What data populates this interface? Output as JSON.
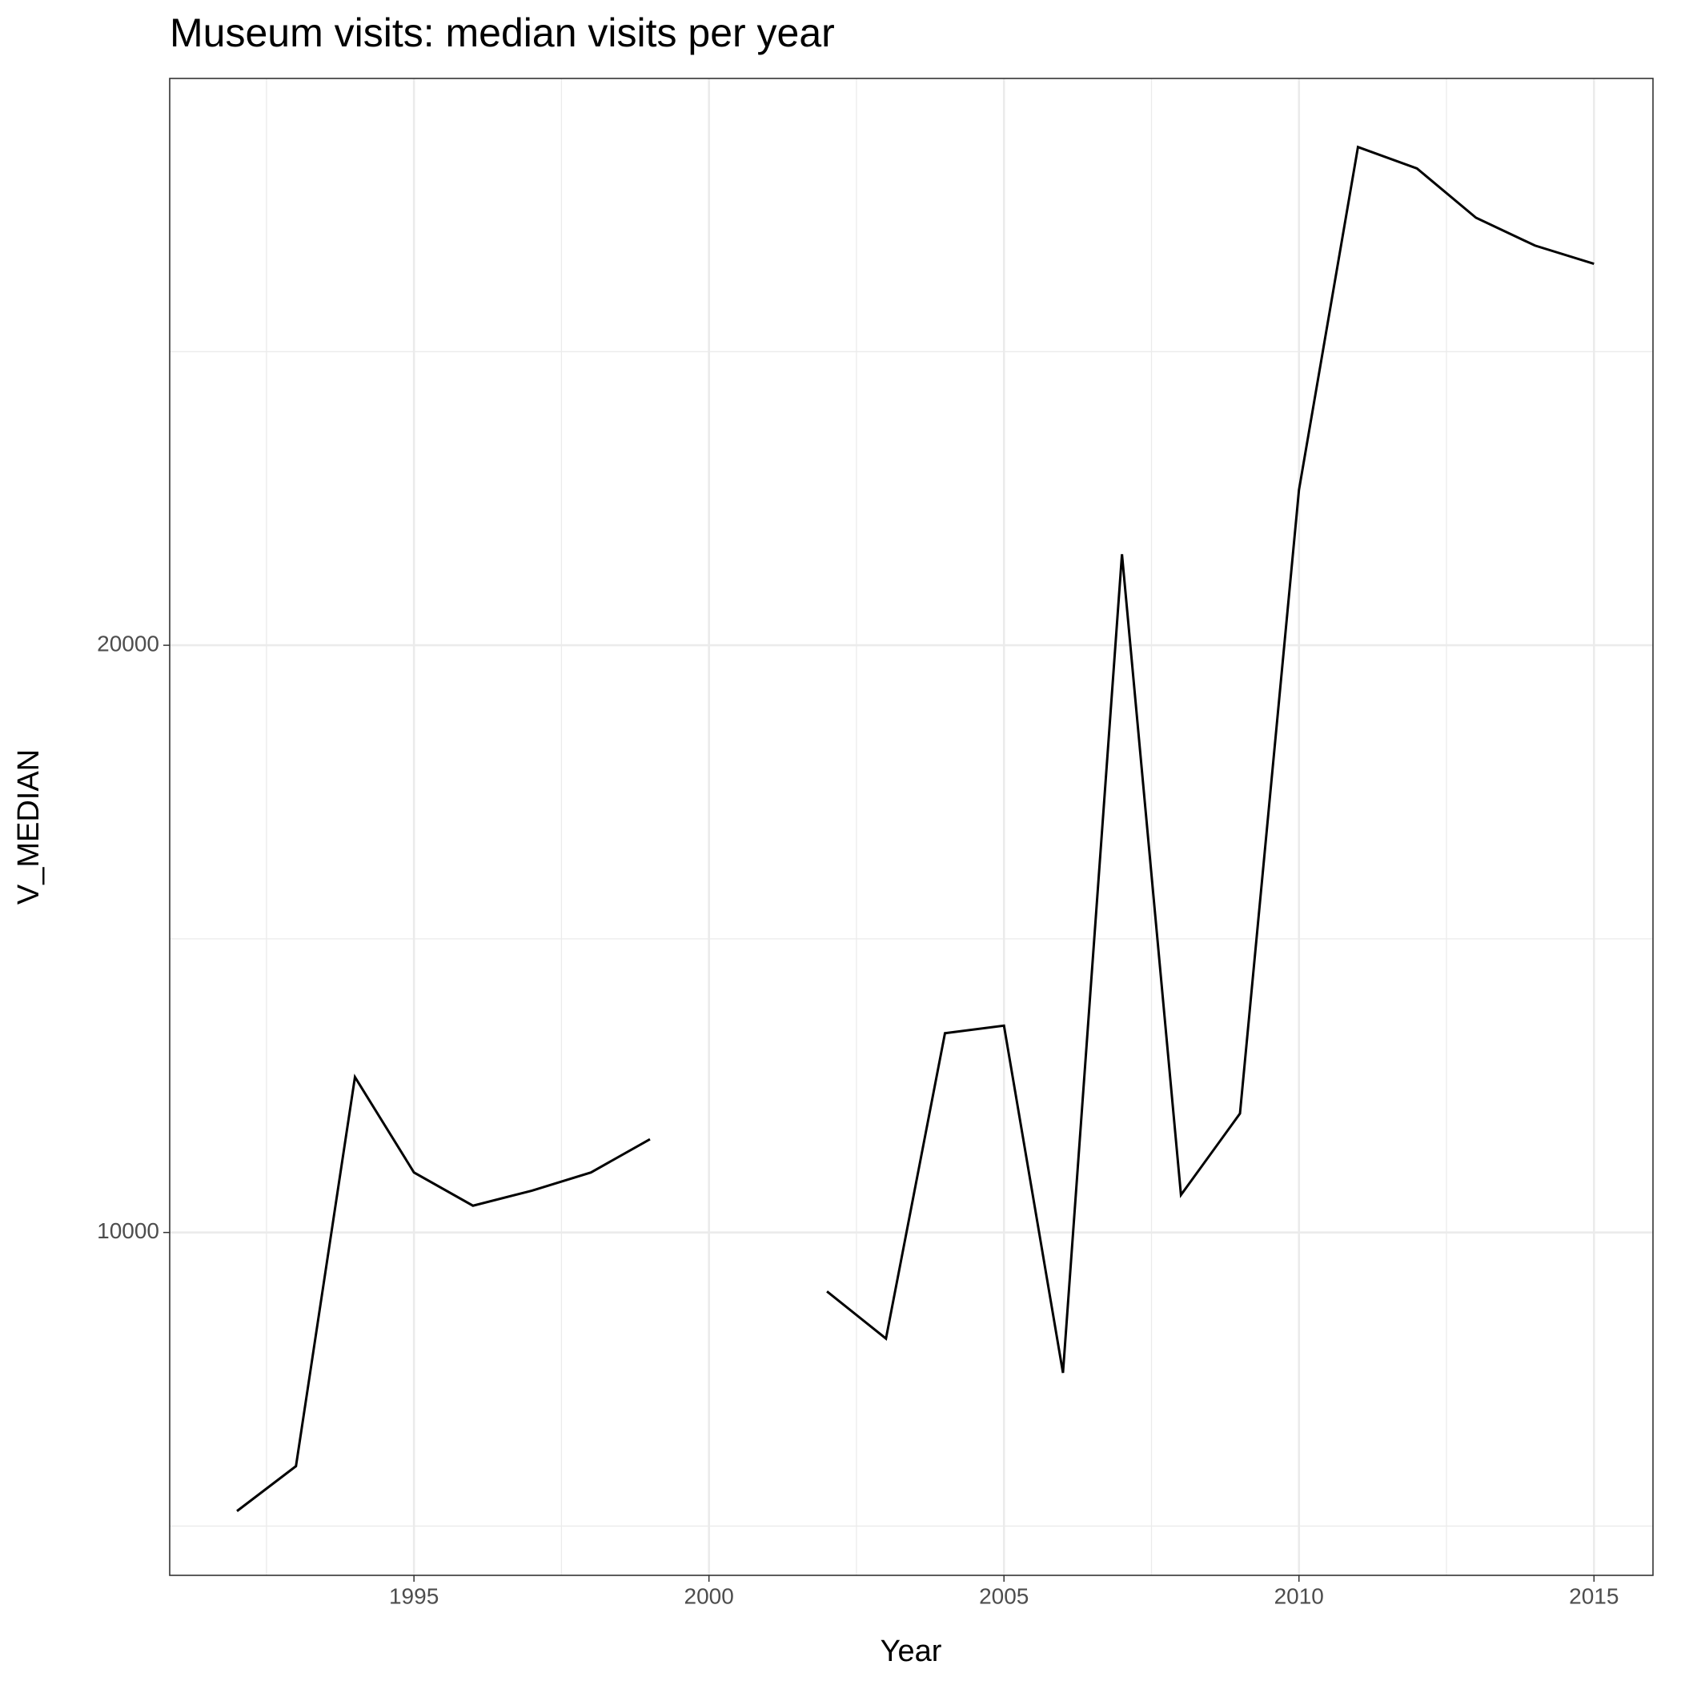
{
  "chart_data": {
    "type": "line",
    "title": "Museum visits: median visits per year",
    "x_label": "Year",
    "y_label": "V_MEDIAN",
    "x": [
      1992,
      1993,
      1994,
      1995,
      1996,
      1997,
      1998,
      1999,
      2000,
      2001,
      2002,
      2003,
      2004,
      2005,
      2006,
      2007,
      2008,
      2009,
      2010,
      2011,
      2012,
      2013,
      2014,
      2015
    ],
    "values": [
      5255,
      6020,
      12646,
      11022,
      10456,
      10712,
      11022,
      11588,
      null,
      null,
      8996,
      8193,
      13394,
      13522,
      7609,
      21551,
      10639,
      12026,
      22646,
      28485,
      28120,
      27281,
      26807,
      26496
    ],
    "color": "#000000",
    "xlim": [
      1990.86,
      2016.0
    ],
    "xticks": [
      1995,
      2000,
      2005,
      2010,
      2015
    ],
    "ylim": [
      4161,
      29653
    ],
    "yticks": [
      10000,
      20000
    ],
    "grid": true
  }
}
